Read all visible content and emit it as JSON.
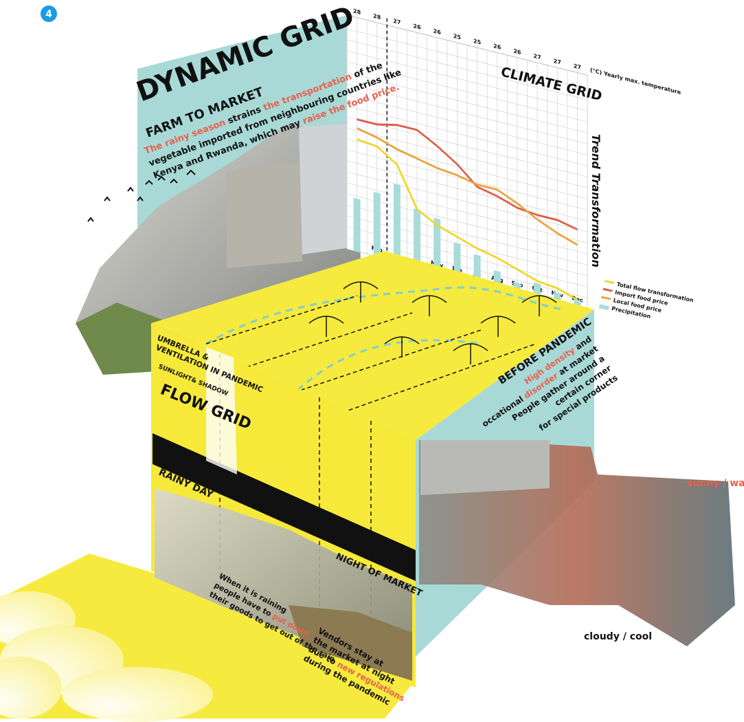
{
  "badge": "4",
  "title": "DYNAMIC GRID",
  "farm_to_market": {
    "heading": "FARM TO MARKET",
    "lines": [
      [
        {
          "text": "The rainy season",
          "color": "#e8604c"
        },
        {
          "text": "  strains  "
        },
        {
          "text": "the transportation",
          "color": "#e8604c"
        },
        {
          "text": " of the"
        }
      ],
      [
        {
          "text": "vegetable imported from neighbouring countries like"
        }
      ],
      [
        {
          "text": "Kenya and Rwanda, which may "
        },
        {
          "text": "raise the food price.",
          "color": "#e8604c"
        }
      ]
    ]
  },
  "climate_grid": {
    "title": "CLIMATE GRID",
    "temperatures": [
      28,
      28,
      27,
      26,
      26,
      25,
      25,
      26,
      26,
      27,
      27,
      27
    ],
    "temperature_label": "(°C) Yearly max. temperature",
    "side_label": "Trend Transformation",
    "categories": [
      null,
      "Feb",
      null,
      null,
      "May",
      "Jun",
      "Jul",
      "Aug",
      "Sep",
      "Oct",
      "Nov",
      "Dec"
    ],
    "ylim": [
      0,
      10
    ],
    "series": [
      {
        "name": "Total flow transformation",
        "color": "#f0d727",
        "kind": "line",
        "values": [
          5.1,
          5.0,
          4.4,
          2.6,
          2.1,
          1.8,
          1.5,
          1.3,
          1.0,
          0.7,
          0.6,
          0.3
        ]
      },
      {
        "name": "Import food price",
        "color": "#d9614c",
        "kind": "line",
        "values": [
          6.0,
          6.0,
          6.2,
          6.2,
          5.7,
          5.1,
          4.3,
          4.1,
          3.8,
          3.7,
          3.7,
          3.5
        ]
      },
      {
        "name": "Local food price",
        "color": "#eba33a",
        "kind": "line",
        "values": [
          5.6,
          5.4,
          5.1,
          4.9,
          4.7,
          4.6,
          4.4,
          4.4,
          4.0,
          3.5,
          3.1,
          2.8
        ]
      },
      {
        "name": "Precipitation",
        "color": "#a8dcd9",
        "kind": "bar",
        "values": [
          2.4,
          2.9,
          3.5,
          2.6,
          2.4,
          1.5,
          1.2,
          0.7,
          0.4,
          0.6,
          0.4,
          0.3
        ]
      }
    ]
  },
  "flow_grid": {
    "umbrella_heading": [
      "UMBRELLA &",
      "VENTILATION IN PANDEMIC"
    ],
    "sunlight_heading": "SUNLIGHT& SHADOW",
    "title": "FLOW GRID",
    "rainy_day": "RAINY DAY",
    "night_of_market": "NIGHT OF MARKET",
    "rain_note": {
      "lines": [
        [
          {
            "text": "When it is raining"
          }
        ],
        [
          {
            "text": "people have to "
          },
          {
            "text": "put down",
            "color": "#e8604c"
          }
        ],
        [
          {
            "text": "their goods to get out of the rain"
          }
        ]
      ]
    },
    "night_note": {
      "lines": [
        [
          {
            "text": "Vendors stay at"
          }
        ],
        [
          {
            "text": "the market at night"
          }
        ],
        [
          {
            "text": "due to "
          },
          {
            "text": "new regulations",
            "color": "#e8604c"
          }
        ],
        [
          {
            "text": "during the pandemic"
          }
        ]
      ]
    }
  },
  "before_pandemic": {
    "heading": "BEFORE PANDEMIC",
    "lines": [
      [
        {
          "text": "High density",
          "color": "#e8604c"
        },
        {
          "text": " and"
        }
      ],
      [
        {
          "text": "occational "
        },
        {
          "text": "disorder",
          "color": "#e8604c"
        },
        {
          "text": " at market"
        }
      ],
      [
        {
          "text": "People gather around a"
        }
      ],
      [
        {
          "text": "certain  corner"
        }
      ],
      [
        {
          "text": "for special products"
        }
      ]
    ]
  },
  "weather": {
    "sunny": "sunny / warm",
    "cloudy": "cloudy / cool"
  }
}
